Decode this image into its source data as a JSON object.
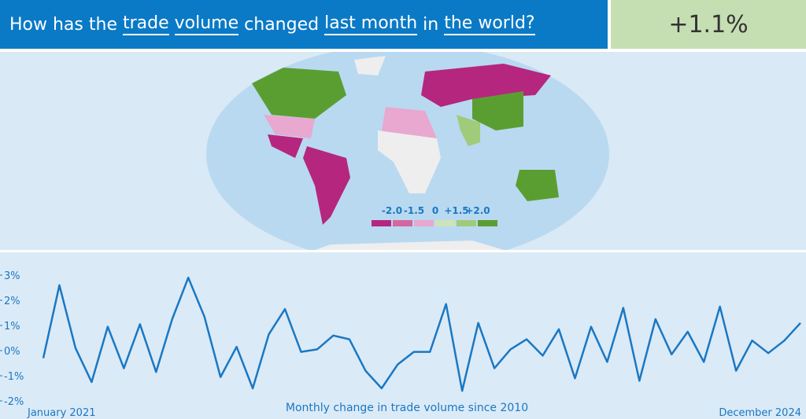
{
  "header": {
    "parts": [
      "How has the",
      "trade",
      "volume",
      "changed",
      "last month",
      "in",
      "the world?"
    ],
    "result": "+1.1%"
  },
  "map": {
    "legend": {
      "labels": [
        "-2.0",
        "-1.5",
        "0",
        "+1.5",
        "+2.0"
      ],
      "colors": [
        "#b5267f",
        "#d5679f",
        "#e8a8cf",
        "#cde3b8",
        "#9fcb7a",
        "#5a9e32"
      ]
    }
  },
  "chart_data": {
    "type": "line",
    "x_label": "Monthly change in trade volume since 2010",
    "categories": [
      "January 2021",
      null,
      null,
      null,
      null,
      null,
      null,
      null,
      null,
      null,
      null,
      null,
      null,
      null,
      null,
      null,
      null,
      null,
      null,
      null,
      null,
      null,
      null,
      null,
      null,
      null,
      null,
      null,
      null,
      null,
      null,
      null,
      null,
      null,
      null,
      null,
      null,
      null,
      null,
      null,
      null,
      null,
      null,
      null,
      null,
      null,
      null,
      "December 2024"
    ],
    "series": [
      {
        "name": "Monthly change",
        "color": "#1a78c2",
        "values": [
          -0.3,
          2.6,
          0.1,
          -1.25,
          0.95,
          -0.7,
          1.05,
          -0.85,
          1.25,
          2.9,
          1.35,
          -1.05,
          0.15,
          -1.5,
          0.65,
          1.65,
          -0.05,
          0.05,
          0.6,
          0.45,
          -0.8,
          -1.5,
          -0.55,
          -0.05,
          -0.05,
          1.85,
          -1.6,
          1.1,
          -0.7,
          0.05,
          0.45,
          -0.2,
          0.85,
          -1.1,
          0.95,
          -0.45,
          1.7,
          -1.2,
          1.25,
          -0.15,
          0.75,
          -0.45,
          1.75,
          -0.8,
          0.4,
          -0.1,
          0.4,
          1.1
        ]
      }
    ],
    "ylim": [
      -2,
      3
    ],
    "yticks": [
      {
        "value": -2,
        "label": "-2%"
      },
      {
        "value": -1,
        "label": "-1%"
      },
      {
        "value": 0,
        "label": "0%"
      },
      {
        "value": 1,
        "label": "1%"
      },
      {
        "value": 2,
        "label": "2%"
      },
      {
        "value": 3,
        "label": "3%"
      }
    ]
  }
}
